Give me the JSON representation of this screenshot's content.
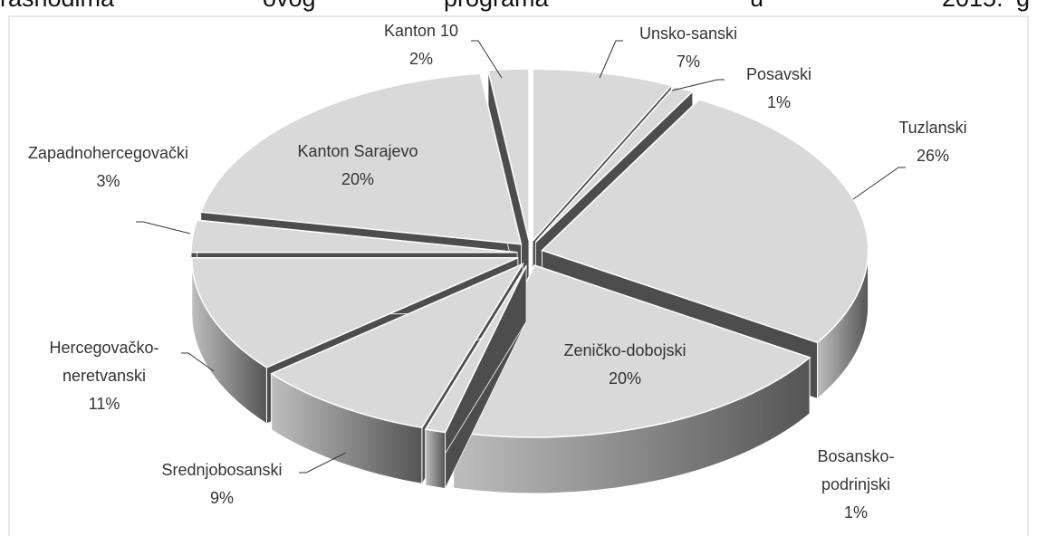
{
  "heading_fragments": [
    "rashodima",
    "ovog",
    "programa",
    "u",
    "2015.",
    "g"
  ],
  "chart_data": {
    "type": "pie",
    "categories": [
      "Unsko-sanski",
      "Posavski",
      "Tuzlanski",
      "Zeničko-dobojski",
      "Bosansko-podrinjski",
      "Srednjobosanski",
      "Hercegovačko-neretvanski",
      "Zapadnohercegovački",
      "Kanton Sarajevo",
      "Kanton 10"
    ],
    "values": [
      7,
      1,
      26,
      20,
      1,
      9,
      11,
      3,
      20,
      2
    ],
    "value_labels": [
      "7%",
      "1%",
      "26%",
      "20%",
      "1%",
      "9%",
      "11%",
      "3%",
      "20%",
      "2%"
    ],
    "color": "#d9d9d9"
  }
}
